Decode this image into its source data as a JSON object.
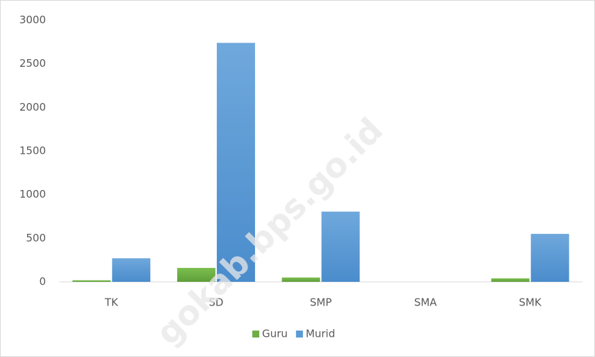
{
  "chart_data": {
    "type": "bar",
    "categories": [
      "TK",
      "SD",
      "SMP",
      "SMA",
      "SMK"
    ],
    "series": [
      {
        "name": "Guru",
        "color": "#70ad47",
        "values": [
          18,
          160,
          50,
          0,
          40
        ]
      },
      {
        "name": "Murid",
        "color": "#5b9bd5",
        "values": [
          270,
          2740,
          805,
          0,
          550
        ]
      }
    ],
    "ylim": [
      0,
      3000
    ],
    "yticks": [
      0,
      500,
      1000,
      1500,
      2000,
      2500,
      3000
    ],
    "grid": false,
    "legend": "bottom",
    "watermark": "gokab.bps.go.id"
  }
}
